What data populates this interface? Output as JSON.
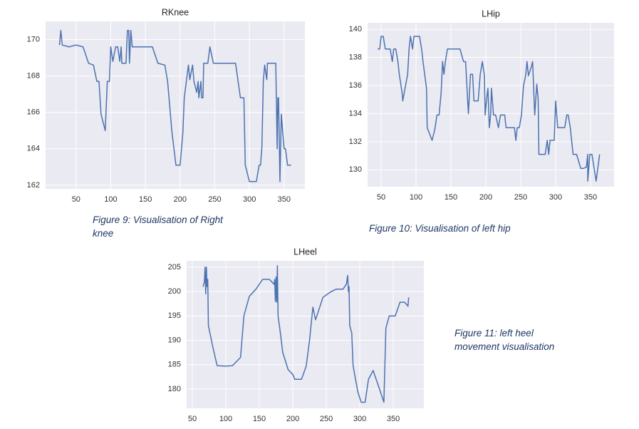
{
  "chart_data": [
    {
      "type": "line",
      "title": "RKnee",
      "caption": "Figure 9: Visualisation of Right knee",
      "color": "#4c72b0",
      "grid": true,
      "xlim": [
        6,
        380
      ],
      "ylim": [
        161.8,
        171
      ],
      "xticks": [
        50,
        100,
        150,
        200,
        250,
        300,
        350
      ],
      "yticks": [
        162,
        164,
        166,
        168,
        170
      ],
      "x": [
        26,
        28,
        30,
        40,
        50,
        60,
        68,
        75,
        80,
        83,
        86,
        92,
        95,
        98,
        100,
        103,
        107,
        110,
        113,
        115,
        116,
        122,
        124,
        126,
        127,
        129,
        131,
        150,
        160,
        168,
        178,
        182,
        188,
        194,
        200,
        204,
        206,
        212,
        214,
        218,
        220,
        224,
        226,
        227,
        230,
        231,
        233,
        234,
        240,
        243,
        248,
        265,
        280,
        287,
        292,
        294,
        300,
        310,
        314,
        316,
        318,
        320,
        322,
        325,
        326,
        338,
        340,
        341,
        342,
        344,
        346,
        348,
        350,
        352,
        355,
        360
      ],
      "values": [
        169.7,
        170.5,
        169.7,
        169.6,
        169.7,
        169.6,
        168.7,
        168.6,
        167.7,
        167.7,
        165.9,
        165.0,
        167.7,
        167.7,
        169.6,
        168.8,
        169.6,
        169.6,
        168.8,
        169.6,
        168.7,
        168.7,
        170.5,
        170.5,
        168.7,
        170.5,
        169.6,
        169.6,
        169.6,
        168.7,
        168.6,
        167.7,
        165.0,
        163.1,
        163.1,
        164.9,
        166.8,
        168.6,
        167.8,
        168.6,
        167.7,
        167.1,
        167.7,
        166.8,
        167.7,
        166.8,
        166.8,
        168.7,
        168.7,
        169.6,
        168.7,
        168.7,
        168.7,
        166.8,
        166.8,
        163.1,
        162.2,
        162.2,
        163.1,
        163.1,
        164.1,
        167.7,
        168.6,
        167.8,
        168.7,
        168.7,
        164.0,
        166.8,
        166.8,
        162.2,
        165.9,
        164.9,
        164.0,
        164.0,
        163.1,
        163.1
      ]
    },
    {
      "type": "line",
      "title": "LHip",
      "caption": "Figure 10: Visualisation of left hip",
      "color": "#4c72b0",
      "grid": true,
      "xlim": [
        30.6,
        383.7
      ],
      "ylim": [
        128.8,
        140.46
      ],
      "xticks": [
        50,
        100,
        150,
        200,
        250,
        300,
        350
      ],
      "yticks": [
        130,
        132,
        134,
        136,
        138,
        140
      ],
      "x": [
        45,
        48,
        50,
        53,
        56,
        63,
        66,
        68,
        71,
        74,
        76,
        80,
        81,
        85,
        88,
        90,
        92,
        95,
        97,
        105,
        108,
        110,
        115,
        116,
        123,
        127,
        130,
        133,
        136,
        138,
        140,
        142,
        145,
        160,
        163,
        168,
        171,
        175,
        178,
        181,
        183,
        186,
        189,
        192,
        195,
        198,
        199,
        201,
        203,
        205,
        207,
        208,
        211,
        214,
        218,
        221,
        227,
        229,
        237,
        241,
        243,
        245,
        248,
        251,
        254,
        257,
        259,
        261,
        265,
        267,
        270,
        273,
        275,
        276,
        282,
        285,
        288,
        290,
        292,
        298,
        300,
        303,
        310,
        313,
        316,
        318,
        321,
        325,
        330,
        336,
        340,
        344,
        346,
        346,
        349,
        352,
        358,
        363
      ],
      "values": [
        138.6,
        138.6,
        139.5,
        139.5,
        138.6,
        138.6,
        137.7,
        138.6,
        138.6,
        137.7,
        136.8,
        135.5,
        134.9,
        136.0,
        136.8,
        138.6,
        139.5,
        138.6,
        139.5,
        139.5,
        138.6,
        137.7,
        135.8,
        133.0,
        132.1,
        132.9,
        133.9,
        133.9,
        135.5,
        137.7,
        136.8,
        137.7,
        138.6,
        138.6,
        138.6,
        137.7,
        137.7,
        134.0,
        136.8,
        136.8,
        134.9,
        134.9,
        134.9,
        136.8,
        137.7,
        136.7,
        133.9,
        135.0,
        135.8,
        133.0,
        134.0,
        135.8,
        133.9,
        133.9,
        133.0,
        133.9,
        133.9,
        133.0,
        133.0,
        133.0,
        132.1,
        133.0,
        133.0,
        133.9,
        136.0,
        136.7,
        137.7,
        136.7,
        137.3,
        137.7,
        133.9,
        136.1,
        135.0,
        131.1,
        131.1,
        131.1,
        132.1,
        131.1,
        132.1,
        132.1,
        134.9,
        133.0,
        133.0,
        133.0,
        133.9,
        133.9,
        133.0,
        131.1,
        131.1,
        130.1,
        130.1,
        130.2,
        131.1,
        129.2,
        131.1,
        131.1,
        129.2,
        131.1
      ]
    },
    {
      "type": "line",
      "title": "LHeel",
      "caption": "Figure 11: left heel movement visualisation",
      "color": "#4c72b0",
      "grid": true,
      "xlim": [
        41.5,
        395.7
      ],
      "ylim": [
        176.05,
        206.3
      ],
      "xticks": [
        50,
        100,
        150,
        200,
        250,
        300,
        350
      ],
      "yticks": [
        180,
        185,
        190,
        195,
        200,
        205
      ],
      "x": [
        66,
        68,
        69,
        70,
        71,
        72,
        73,
        74,
        80,
        87,
        100,
        110,
        122,
        127,
        135,
        145,
        155,
        165,
        172,
        173,
        174,
        175,
        176,
        177,
        178,
        181,
        185,
        193,
        200,
        203,
        213,
        220,
        225,
        230,
        234,
        245,
        255,
        265,
        275,
        280,
        282,
        283,
        284,
        285,
        288,
        290,
        297,
        302,
        308,
        313,
        320,
        330,
        336,
        339,
        344,
        353,
        360,
        367,
        372,
        373
      ],
      "values": [
        201,
        202,
        205,
        199.5,
        205,
        201,
        202.5,
        193,
        189,
        184.8,
        184.7,
        184.8,
        186.5,
        195,
        199,
        200.5,
        202.5,
        202.5,
        201.5,
        202.5,
        198,
        203,
        197.8,
        205.3,
        195,
        192,
        187.5,
        184,
        183,
        182,
        182,
        184.7,
        190,
        196.8,
        194.2,
        198.8,
        199.8,
        200.5,
        200.5,
        201.5,
        203.3,
        200,
        201,
        193,
        191.5,
        184.8,
        179.5,
        177.3,
        177.3,
        182,
        183.8,
        179.8,
        177.3,
        192.5,
        195,
        195,
        197.8,
        197.8,
        197,
        198.8
      ]
    }
  ]
}
